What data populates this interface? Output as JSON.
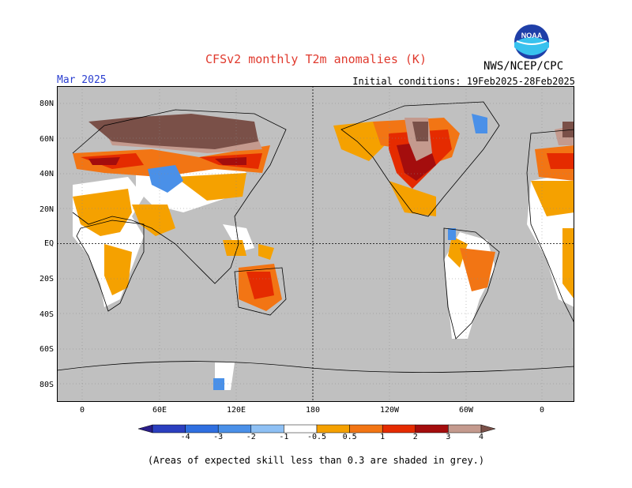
{
  "header": {
    "title": "CFSv2 monthly T2m anomalies (K)",
    "org": "NWS/NCEP/CPC",
    "month": "Mar 2025",
    "initial": "Initial conditions: 19Feb2025-28Feb2025",
    "logo_text": "NOAA"
  },
  "axes": {
    "lat_labels": [
      "80N",
      "60N",
      "40N",
      "20N",
      "EQ",
      "20S",
      "40S",
      "60S",
      "80S"
    ],
    "lon_labels": [
      "0",
      "60E",
      "120E",
      "180",
      "120W",
      "60W",
      "0"
    ]
  },
  "colorbar": {
    "labels": [
      "-4",
      "-3",
      "-2",
      "-1",
      "-0.5",
      "0.5",
      "1",
      "2",
      "3",
      "4"
    ],
    "colors": [
      "#2a1d8a",
      "#2b3fbf",
      "#2f6fe0",
      "#4a90e8",
      "#8ec0f4",
      "#ffffff",
      "#f5a100",
      "#f27514",
      "#e52b00",
      "#a40d0d",
      "#c49a8e",
      "#7a5048"
    ]
  },
  "note": "(Areas of expected skill less than 0.3 are shaded in grey.)",
  "colors": {
    "grey": "#c0c0c0",
    "title": "#e03a2e",
    "month": "#2b3fd0"
  }
}
